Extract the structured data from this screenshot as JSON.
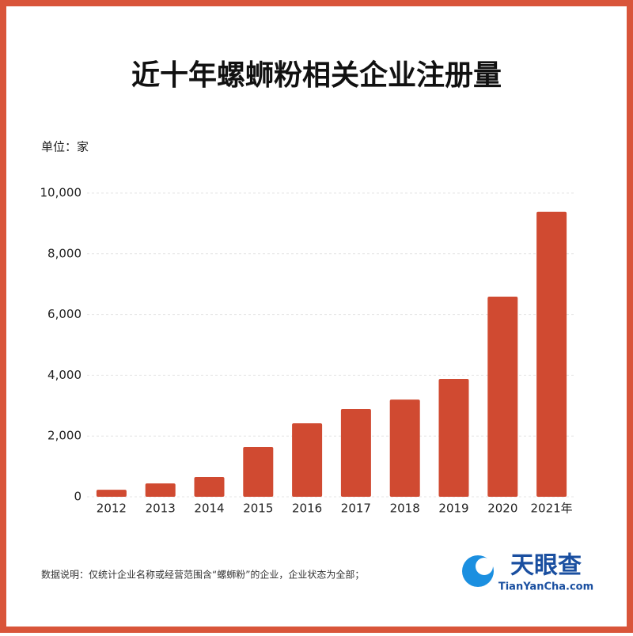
{
  "chart_data": {
    "type": "bar",
    "title": "近十年螺蛳粉相关企业注册量",
    "unit": "单位：家",
    "categories": [
      "2012",
      "2013",
      "2014",
      "2015",
      "2016",
      "2017",
      "2018",
      "2019",
      "2020",
      "2021年"
    ],
    "values": [
      230,
      440,
      650,
      1640,
      2420,
      2890,
      3200,
      3880,
      6590,
      9380
    ],
    "color": "#d04a31",
    "ylim": [
      0,
      10000
    ],
    "yticks": [
      0,
      {
        "value": 2000,
        "label": "2,000"
      },
      {
        "value": 4000,
        "label": "4,000"
      },
      {
        "value": 6000,
        "label": "6,000"
      },
      {
        "value": 8000,
        "label": "8,000"
      },
      {
        "value": 10000,
        "label": "10,000"
      }
    ],
    "grid": true,
    "note": "数据说明：仅统计企业名称或经营范围含“螺蛳粉”的企业，企业状态为全部；",
    "logo": {
      "name": "天眼查",
      "url": "TianYanCha.com"
    }
  }
}
